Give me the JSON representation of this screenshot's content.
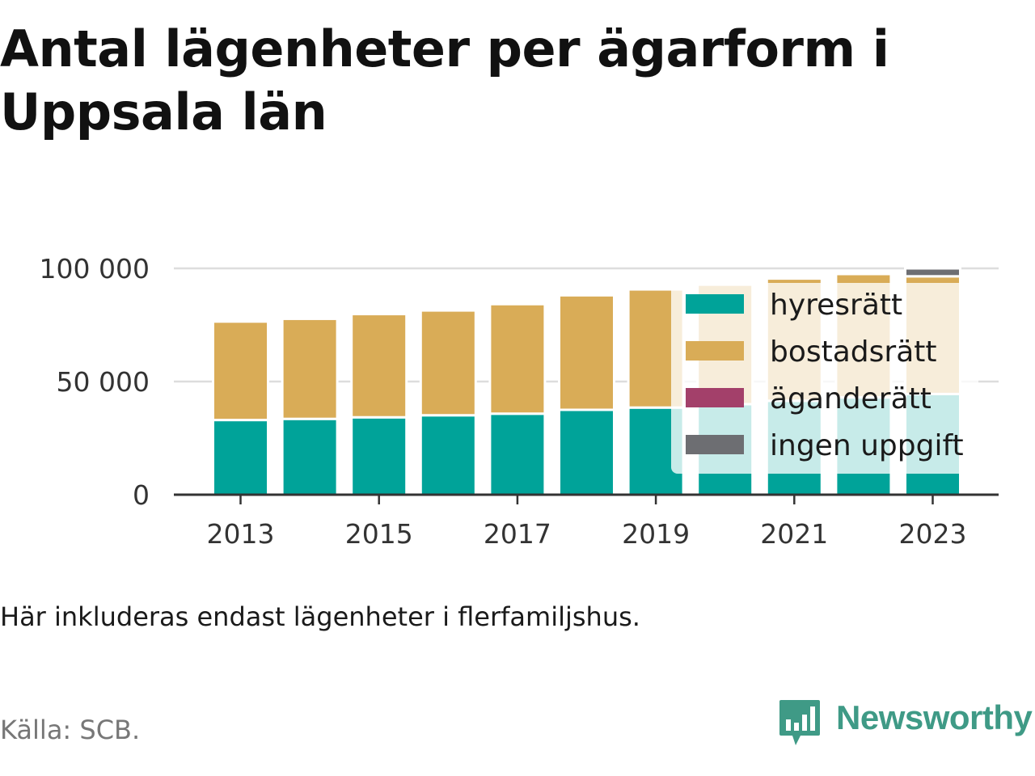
{
  "title": "Antal lägenheter per ägarform i Uppsala län",
  "note": "Här inkluderas endast lägenheter i flerfamiljshus.",
  "source": "Källa: SCB.",
  "brand": "Newsworthy",
  "brand_color": "#3f9a86",
  "chart_data": {
    "type": "bar",
    "stacked": true,
    "x": [
      2013,
      2014,
      2015,
      2016,
      2017,
      2018,
      2019,
      2020,
      2021,
      2022,
      2023
    ],
    "x_tick_labels": [
      "2013",
      "2015",
      "2017",
      "2019",
      "2021",
      "2023"
    ],
    "y_tick_values": [
      0,
      50000,
      100000
    ],
    "y_tick_labels": [
      "0",
      "50 000",
      "100 000"
    ],
    "ylim": [
      0,
      100000
    ],
    "grid": true,
    "legend_position": "top-right",
    "series": [
      {
        "name": "hyresrätt",
        "color": "#00a399",
        "values": [
          33000,
          33500,
          34200,
          35100,
          35800,
          37500,
          38500,
          40000,
          41500,
          43000,
          44500
        ]
      },
      {
        "name": "bostadsrätt",
        "color": "#d9ac57",
        "values": [
          43500,
          44200,
          45600,
          46300,
          48400,
          50600,
          52200,
          52800,
          54000,
          54500,
          52000
        ]
      },
      {
        "name": "äganderätt",
        "color": "#a3406a",
        "values": [
          0,
          0,
          0,
          0,
          0,
          0,
          0,
          0,
          0,
          0,
          0
        ]
      },
      {
        "name": "ingen uppgift",
        "color": "#6d6e72",
        "values": [
          0,
          0,
          0,
          0,
          0,
          0,
          0,
          0,
          0,
          0,
          3500
        ]
      }
    ]
  }
}
